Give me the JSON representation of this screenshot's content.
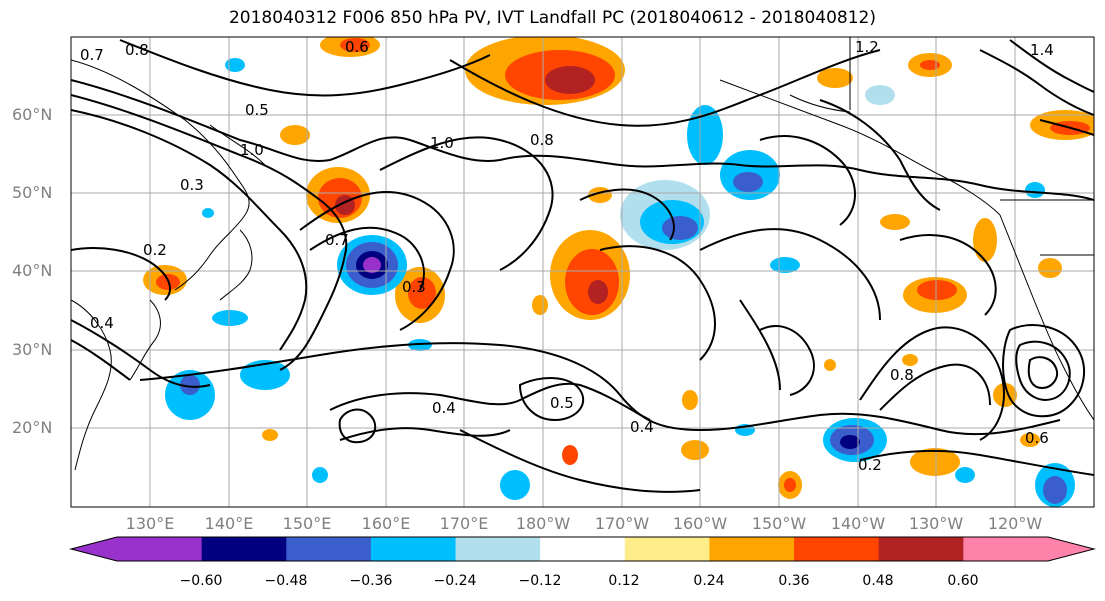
{
  "title": "2018040312 F006 850 hPa PV, IVT Landfall PC (2018040612 - 2018040812)",
  "lat_labels": [
    "60°N",
    "50°N",
    "40°N",
    "30°N",
    "20°N"
  ],
  "lon_labels": [
    "130°E",
    "140°E",
    "150°E",
    "160°E",
    "170°E",
    "180°W",
    "170°W",
    "160°W",
    "150°W",
    "140°W",
    "130°W",
    "120°W"
  ],
  "colorbar": {
    "ticks": [
      "−0.60",
      "−0.48",
      "−0.36",
      "−0.24",
      "−0.12",
      "0.12",
      "0.24",
      "0.36",
      "0.48",
      "0.60"
    ],
    "colors": [
      "#9932cc",
      "#000080",
      "#3a5fcd",
      "#00bfff",
      "#b2dfee",
      "#ffffff",
      "#ffec8b",
      "#ffa500",
      "#ff4500",
      "#b22222",
      "#ff82ab"
    ]
  },
  "contour_labels": [
    "0.7",
    "0.8",
    "0.6",
    "0.5",
    "1.0",
    "0.3",
    "0.2",
    "0.4",
    "0.8",
    "1.0",
    "0.7",
    "0.4",
    "0.5",
    "0.4",
    "0.2",
    "0.6",
    "0.8",
    "0.3",
    "1.2",
    "1.4"
  ]
}
